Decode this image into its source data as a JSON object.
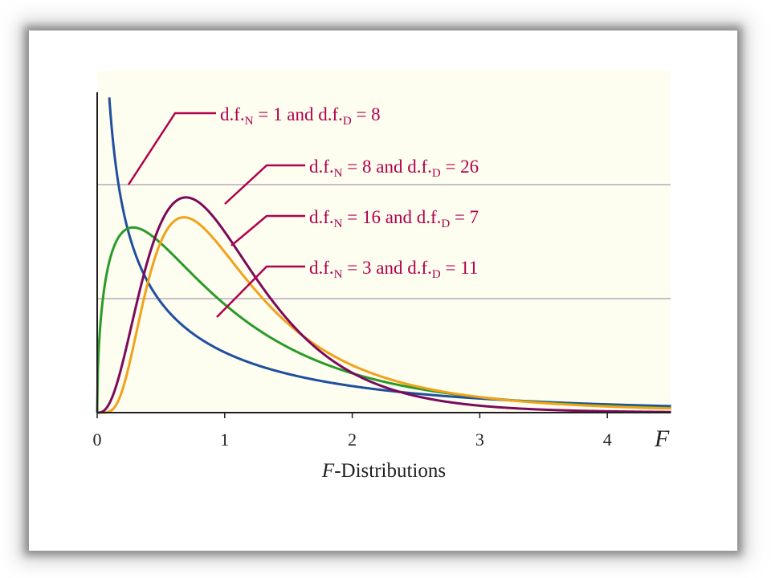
{
  "chart_data": {
    "type": "line",
    "title": "F-Distributions",
    "xlabel": "F",
    "xlim": [
      0,
      4.5
    ],
    "x_ticks": [
      "0",
      "1",
      "2",
      "3",
      "4"
    ],
    "grid": "horizontal",
    "series": [
      {
        "name": "d.f.N = 1 and d.f.D = 8",
        "df1": 1,
        "df2": 8,
        "color": "#1f4f9e",
        "label": {
          "prefix": "d.f.",
          "sub1": "N",
          "mid": " = 1 and d.f.",
          "sub2": "D",
          "suffix": " = 8"
        }
      },
      {
        "name": "d.f.N = 8 and d.f.D = 26",
        "df1": 8,
        "df2": 26,
        "color": "#7b0a5c",
        "label": {
          "prefix": "d.f.",
          "sub1": "N",
          "mid": " = 8 and d.f.",
          "sub2": "D",
          "suffix": " = 26"
        }
      },
      {
        "name": "d.f.N = 16 and d.f.D = 7",
        "df1": 16,
        "df2": 7,
        "color": "#f2a11a",
        "label": {
          "prefix": "d.f.",
          "sub1": "N",
          "mid": " = 16 and d.f.",
          "sub2": "D",
          "suffix": " = 7"
        }
      },
      {
        "name": "d.f.N = 3 and d.f.D = 11",
        "df1": 3,
        "df2": 11,
        "color": "#2a9a28",
        "label": {
          "prefix": "d.f.",
          "sub1": "N",
          "mid": " = 3 and d.f.",
          "sub2": "D",
          "suffix": " = 11"
        }
      }
    ],
    "colors": {
      "background": "#fdfdf0",
      "grid": "#b7a9bb",
      "axis": "#231f20",
      "label_text": "#b1004c"
    }
  }
}
